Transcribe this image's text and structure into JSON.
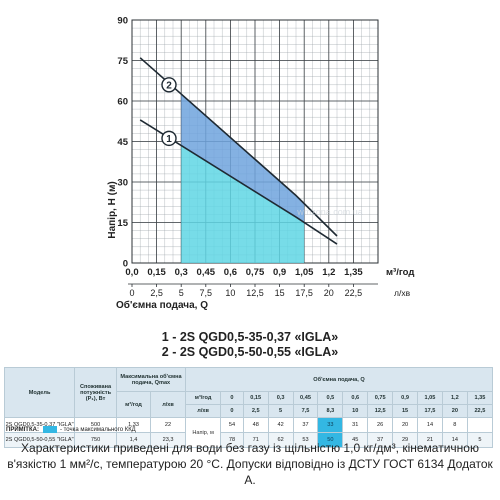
{
  "chart_data": {
    "type": "line",
    "ylabel": "Напір, Н (м)",
    "xlabel": "Об'ємна подача, Q",
    "x_unit_top": "м³/год",
    "x_unit_bottom": "л/хв",
    "xlim": [
      0,
      1.5
    ],
    "ylim": [
      0,
      90
    ],
    "x_ticks_top": [
      "0,0",
      "0,15",
      "0,3",
      "0,45",
      "0,6",
      "0,75",
      "0,9",
      "1,05",
      "1,2",
      "1,35"
    ],
    "x_ticks_bottom": [
      "0",
      "2,5",
      "5",
      "7,5",
      "10",
      "12,5",
      "15",
      "17,5",
      "20",
      "22,5"
    ],
    "y_ticks": [
      "0",
      "15",
      "30",
      "45",
      "60",
      "75",
      "90"
    ],
    "series": [
      {
        "name": "1",
        "x": [
          0.05,
          1.0,
          1.25
        ],
        "y": [
          53,
          17,
          7
        ],
        "color": "#1f2a33"
      },
      {
        "name": "2",
        "x": [
          0.05,
          1.0,
          1.25
        ],
        "y": [
          76,
          25,
          10
        ],
        "color": "#1f2a33"
      }
    ],
    "efficiency_zone": {
      "q_from": 0.3,
      "q_to": 1.05,
      "color": "#5fd6e4"
    },
    "upper_zone": {
      "color": "#6fa3dd"
    },
    "grid": true,
    "watermark": "wmzona.com.ua"
  },
  "models": {
    "line1": "1 - 2S QGD0,5-35-0,37 «IGLA»",
    "line2": "2 - 2S QGD0,5-50-0,55 «IGLA»"
  },
  "table": {
    "col_model": "Модель",
    "col_power": "Споживана потужність (P₁), Вт",
    "col_qmax": "Максимальна об'ємна подача, Qmax",
    "col_q": "Об'ємна подача, Q",
    "unit_m3h": "м³/год",
    "unit_lmin": "л/хв",
    "napir_label": "Напір, м",
    "q_m3h": [
      "0",
      "0,15",
      "0,3",
      "0,45",
      "0,5",
      "0,6",
      "0,75",
      "0,9",
      "1,05",
      "1,2",
      "1,35"
    ],
    "q_lmin": [
      "0",
      "2,5",
      "5",
      "7,5",
      "8,3",
      "10",
      "12,5",
      "15",
      "17,5",
      "20",
      "22,5"
    ],
    "rows": [
      {
        "model": "2S QGD0,5-35-0,37 \"IGLA\"",
        "power": "500",
        "qmax_m3h": "1,33",
        "qmax_lmin": "22",
        "values": [
          "54",
          "48",
          "42",
          "37",
          "33",
          "31",
          "26",
          "20",
          "14",
          "8",
          ""
        ]
      },
      {
        "model": "2S QGD0,5-50-0,55 \"IGLA\"",
        "power": "750",
        "qmax_m3h": "1,4",
        "qmax_lmin": "23,3",
        "values": [
          "78",
          "71",
          "62",
          "53",
          "50",
          "45",
          "37",
          "29",
          "21",
          "14",
          "5"
        ]
      }
    ]
  },
  "note_label": "ПРИМІТКА:",
  "note_text": "- точка максимального ККД",
  "footer": {
    "line1": "Характеристики приведені для води без газу із щільністю 1,0 кг/дм³, кінематичною",
    "line2": "в'язкістю 1 мм²/с, температурою 20 °C. Допуски відповідно із ДСТУ ГОСТ 6134 Додаток А."
  }
}
